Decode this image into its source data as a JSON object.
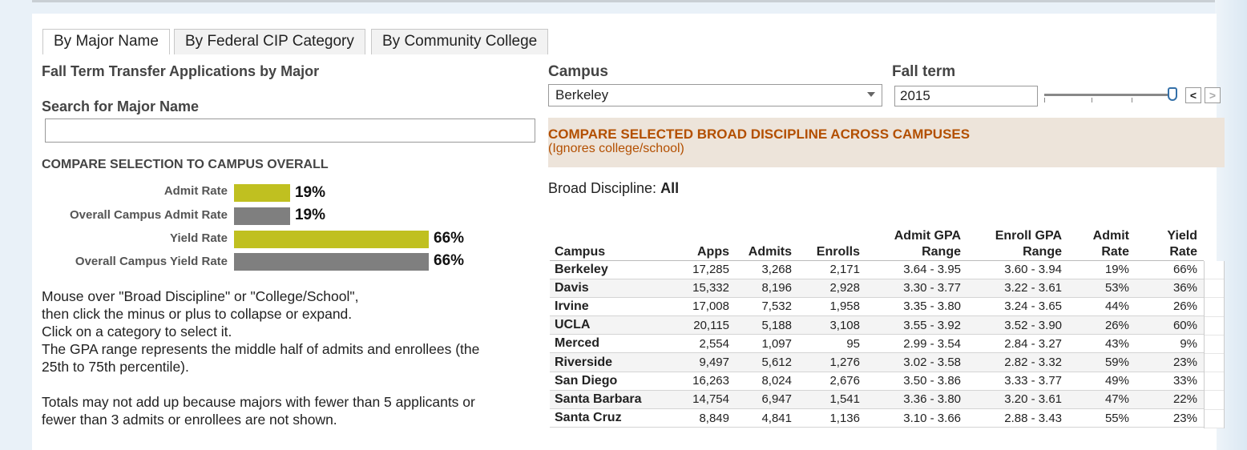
{
  "tabs": [
    {
      "label": "By Major Name"
    },
    {
      "label": "By Federal CIP Category"
    },
    {
      "label": "By Community College"
    }
  ],
  "left": {
    "title": "Fall Term Transfer Applications by Major",
    "search_label": "Search for Major Name",
    "search_value": "",
    "compare_heading": "COMPARE SELECTION TO CAMPUS OVERALL",
    "bars": [
      {
        "label": "Admit Rate",
        "value_text": "19%",
        "value": 19,
        "color": "#c0c020"
      },
      {
        "label": "Overall Campus Admit Rate",
        "value_text": "19%",
        "value": 19,
        "color": "#7f7f7f"
      },
      {
        "label": "Yield Rate",
        "value_text": "66%",
        "value": 66,
        "color": "#c0c020"
      },
      {
        "label": "Overall Campus Yield Rate",
        "value_text": "66%",
        "value": 66,
        "color": "#7f7f7f"
      }
    ],
    "help_lines": [
      "Mouse over \"Broad Discipline\" or \"College/School\",",
      "then click the minus or plus to collapse or expand.",
      "Click on a category to select it.",
      "The GPA range represents the middle half of admits and enrollees (the",
      "25th to 75th percentile)."
    ],
    "note_lines": [
      "Totals may not add up because majors with fewer than 5 applicants or",
      "fewer than 3 admits or enrollees are not shown."
    ]
  },
  "filters": {
    "campus_label": "Campus",
    "campus_value": "Berkeley",
    "term_label": "Fall term",
    "term_value": "2015",
    "prev_label": "<",
    "next_label": ">"
  },
  "compare": {
    "title": "COMPARE SELECTED BROAD DISCIPLINE ACROSS CAMPUSES",
    "subtitle": "(Ignores college/school)"
  },
  "broad": {
    "label": "Broad Discipline:",
    "value": "All"
  },
  "table": {
    "headers": [
      {
        "line1": "",
        "line2": "Campus"
      },
      {
        "line1": "",
        "line2": "Apps"
      },
      {
        "line1": "",
        "line2": "Admits"
      },
      {
        "line1": "",
        "line2": "Enrolls"
      },
      {
        "line1": "Admit GPA",
        "line2": "Range"
      },
      {
        "line1": "Enroll GPA",
        "line2": "Range"
      },
      {
        "line1": "Admit",
        "line2": "Rate"
      },
      {
        "line1": "Yield",
        "line2": "Rate"
      }
    ],
    "rows": [
      [
        "Berkeley",
        "17,285",
        "3,268",
        "2,171",
        "3.64 - 3.95",
        "3.60 - 3.94",
        "19%",
        "66%"
      ],
      [
        "Davis",
        "15,332",
        "8,196",
        "2,928",
        "3.30 - 3.77",
        "3.22 - 3.61",
        "53%",
        "36%"
      ],
      [
        "Irvine",
        "17,008",
        "7,532",
        "1,958",
        "3.35 - 3.80",
        "3.24 - 3.65",
        "44%",
        "26%"
      ],
      [
        "UCLA",
        "20,115",
        "5,188",
        "3,108",
        "3.55 - 3.92",
        "3.52 - 3.90",
        "26%",
        "60%"
      ],
      [
        "Merced",
        "2,554",
        "1,097",
        "95",
        "2.99 - 3.54",
        "2.84 - 3.27",
        "43%",
        "9%"
      ],
      [
        "Riverside",
        "9,497",
        "5,612",
        "1,276",
        "3.02 - 3.58",
        "2.82 - 3.32",
        "59%",
        "23%"
      ],
      [
        "San Diego",
        "16,263",
        "8,024",
        "2,676",
        "3.50 - 3.86",
        "3.33 - 3.77",
        "49%",
        "33%"
      ],
      [
        "Santa Barbara",
        "14,754",
        "6,947",
        "1,541",
        "3.36 - 3.80",
        "3.20 - 3.61",
        "47%",
        "22%"
      ],
      [
        "Santa Cruz",
        "8,849",
        "4,841",
        "1,136",
        "3.10 - 3.66",
        "2.88 - 3.43",
        "55%",
        "23%"
      ]
    ]
  }
}
